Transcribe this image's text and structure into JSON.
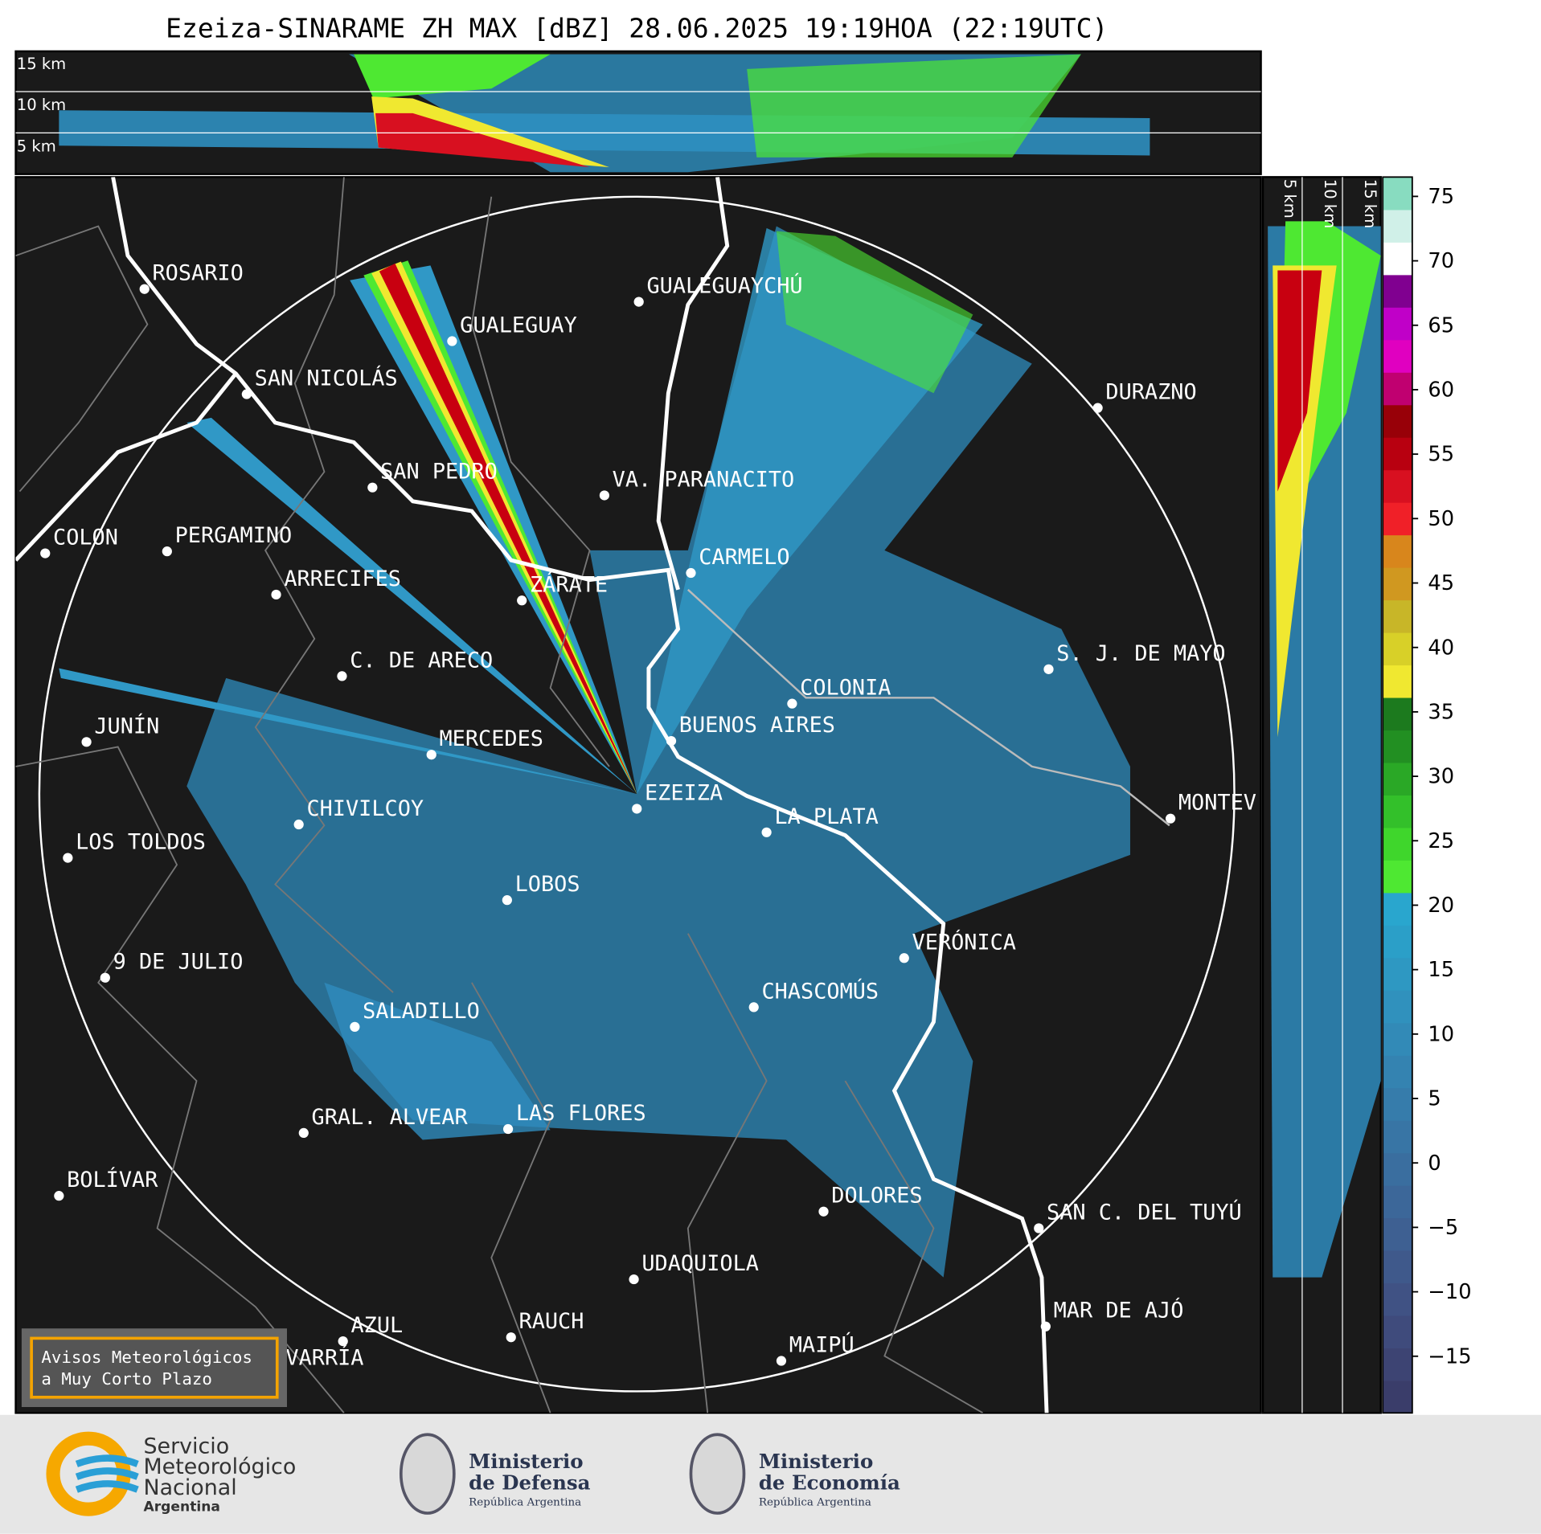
{
  "title": "Ezeiza-SINARAME ZH MAX [dBZ] 28.06.2025 19:19HOA (22:19UTC)",
  "top_section": {
    "altitude_labels": [
      "15 km",
      "10 km",
      "5 km"
    ]
  },
  "side_section": {
    "altitude_labels": [
      "5 km",
      "10 km",
      "15 km"
    ]
  },
  "map": {
    "cities": [
      "ROSARIO",
      "GUALEGUAYCHÚ",
      "GUALEGUAY",
      "SAN NICOLÁS",
      "DURAZNO",
      "SAN PEDRO",
      "VA. PARANACITO",
      "COLON",
      "PERGAMINO",
      "CARMELO",
      "ARRECIFES",
      "ZÁRATE",
      "C. DE ARECO",
      "S. J. DE MAYO",
      "COLONIA",
      "BUENOS AIRES",
      "JUNÍN",
      "MERCEDES",
      "EZEIZA",
      "MONTEV",
      "LA PLATA",
      "CHIVILCOY",
      "LOS TOLDOS",
      "LOBOS",
      "VERÓNICA",
      "9 DE JULIO",
      "CHASCOMÚS",
      "SALADILLO",
      "GRAL. ALVEAR",
      "LAS FLORES",
      "BOLÍVAR",
      "DOLORES",
      "SAN C. DEL TUYÚ",
      "UDAQUIOLA",
      "MAR DE AJÓ",
      "RAUCH",
      "AZUL",
      "OLAVARRÍA",
      "MAIPÚ"
    ]
  },
  "colorbar": {
    "lim": [
      -19.4,
      76.5
    ],
    "ticks": [
      {
        "value": -15,
        "label": "−15"
      },
      {
        "value": -10,
        "label": "−10"
      },
      {
        "value": -5,
        "label": "−5"
      },
      0,
      5,
      10,
      15,
      20,
      25,
      30,
      35,
      40,
      45,
      50,
      55,
      60,
      65,
      70,
      75
    ],
    "colors": [
      "#3a3d6a",
      "#3d4473",
      "#3f4b7c",
      "#405284",
      "#3f598b",
      "#3e6092",
      "#3c6799",
      "#3a6e9f",
      "#3875a5",
      "#367cab",
      "#3483b1",
      "#328ab7",
      "#3091bd",
      "#2e98c2",
      "#2b9fc8",
      "#29a6ce",
      "#4ee832",
      "#3fd62c",
      "#33c02a",
      "#2aa826",
      "#228f22",
      "#1c7a1e",
      "#f0e830",
      "#d8d028",
      "#c8b628",
      "#d09820",
      "#d8861c",
      "#f02028",
      "#d81020",
      "#b80010",
      "#980008",
      "#c00070",
      "#e000c0",
      "#c000c8",
      "#800090",
      "#ffffff",
      "#d0f0e8",
      "#88dcc0"
    ]
  },
  "warning_box": {
    "lines": [
      "Avisos Meteorológicos",
      "a Muy Corto Plazo"
    ]
  },
  "footer": {
    "logos": [
      {
        "lines": [
          "Servicio",
          "Meteorológico",
          "Nacional",
          "Argentina"
        ]
      },
      {
        "lines": [
          "Ministerio",
          "de Defensa",
          "República Argentina"
        ]
      },
      {
        "lines": [
          "Ministerio",
          "de Economía",
          "República Argentina"
        ]
      }
    ]
  }
}
